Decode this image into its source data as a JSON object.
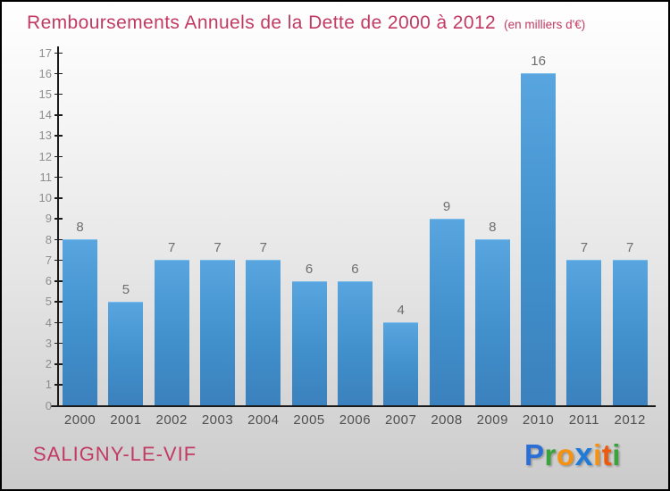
{
  "header": {
    "title": "Remboursements Annuels de la Dette de 2000 à 2012",
    "subtitle": "(en milliers d'€)"
  },
  "footer": {
    "commune": "SALIGNY-LE-VIF",
    "logo_name": "Proxiti",
    "logo_letters": [
      {
        "ch": "P",
        "color": "#2B6FD6"
      },
      {
        "ch": "r",
        "color": "#3BA33B"
      },
      {
        "ch": "o",
        "color": "#F6920F"
      },
      {
        "ch": "x",
        "color": "#1F7AD8"
      },
      {
        "ch": "i",
        "color": "#F6920F"
      },
      {
        "ch": "t",
        "color": "#EE5A0D"
      },
      {
        "ch": "i",
        "color": "#3BA33B"
      }
    ]
  },
  "colors": {
    "accent_pink": "#C23A64",
    "bar_top": "#58A5DF",
    "bar_mid": "#4190CC",
    "bar_bottom": "#3B81BD",
    "bar_cap": "#7CBCE8",
    "axis": "#1A1A1A",
    "ytick_label": "#8E8E8E",
    "xtick_label": "#4F4F4F",
    "value_label": "#6E6E6E"
  },
  "chart_data": {
    "type": "bar",
    "title": "Remboursements Annuels de la Dette de 2000 à 2012",
    "subtitle": "(en milliers d'€)",
    "xlabel": "",
    "ylabel": "",
    "categories": [
      "2000",
      "2001",
      "2002",
      "2003",
      "2004",
      "2005",
      "2006",
      "2007",
      "2008",
      "2009",
      "2010",
      "2011",
      "2012"
    ],
    "values": [
      8,
      5,
      7,
      7,
      7,
      6,
      6,
      4,
      9,
      8,
      16,
      7,
      7
    ],
    "ylim": [
      0,
      17
    ],
    "yticks": [
      0,
      1,
      2,
      3,
      4,
      5,
      6,
      7,
      8,
      9,
      10,
      11,
      12,
      13,
      14,
      15,
      16,
      17
    ],
    "grid": false,
    "legend": false,
    "value_labels": "above-bars"
  }
}
